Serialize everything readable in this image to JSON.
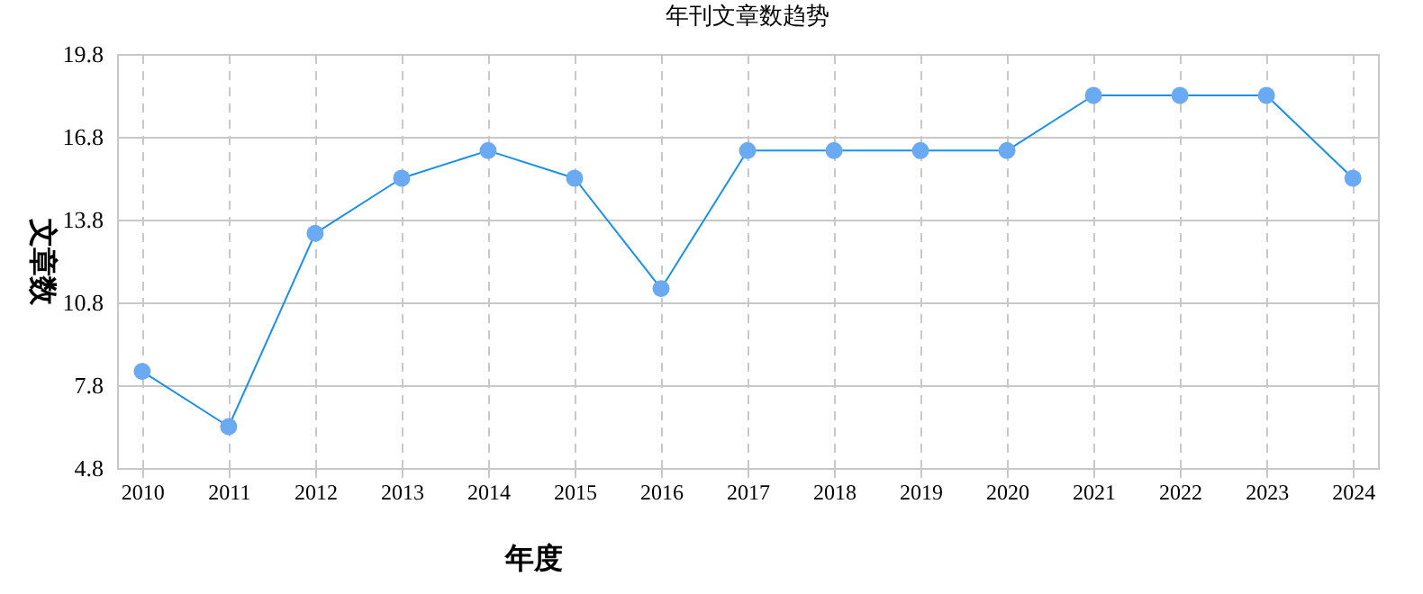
{
  "chart_data": {
    "type": "line",
    "title": "年刊文章数趋势",
    "xlabel": "年度",
    "ylabel": "文章数",
    "categories": [
      "2010",
      "2011",
      "2012",
      "2013",
      "2014",
      "2015",
      "2016",
      "2017",
      "2018",
      "2019",
      "2020",
      "2021",
      "2022",
      "2023",
      "2024"
    ],
    "series": [
      {
        "color": "#1a90e8",
        "values": [
          8.3,
          6.3,
          13.3,
          15.3,
          16.3,
          15.3,
          11.3,
          16.3,
          16.3,
          16.3,
          16.3,
          18.3,
          18.3,
          18.3,
          15.3
        ]
      }
    ],
    "ylim": [
      4.8,
      19.8
    ],
    "yticks": [
      4.8,
      7.8,
      10.8,
      13.8,
      16.8,
      19.8
    ],
    "grid": true,
    "marker": "circle",
    "line_style": "solid",
    "legend": false
  }
}
